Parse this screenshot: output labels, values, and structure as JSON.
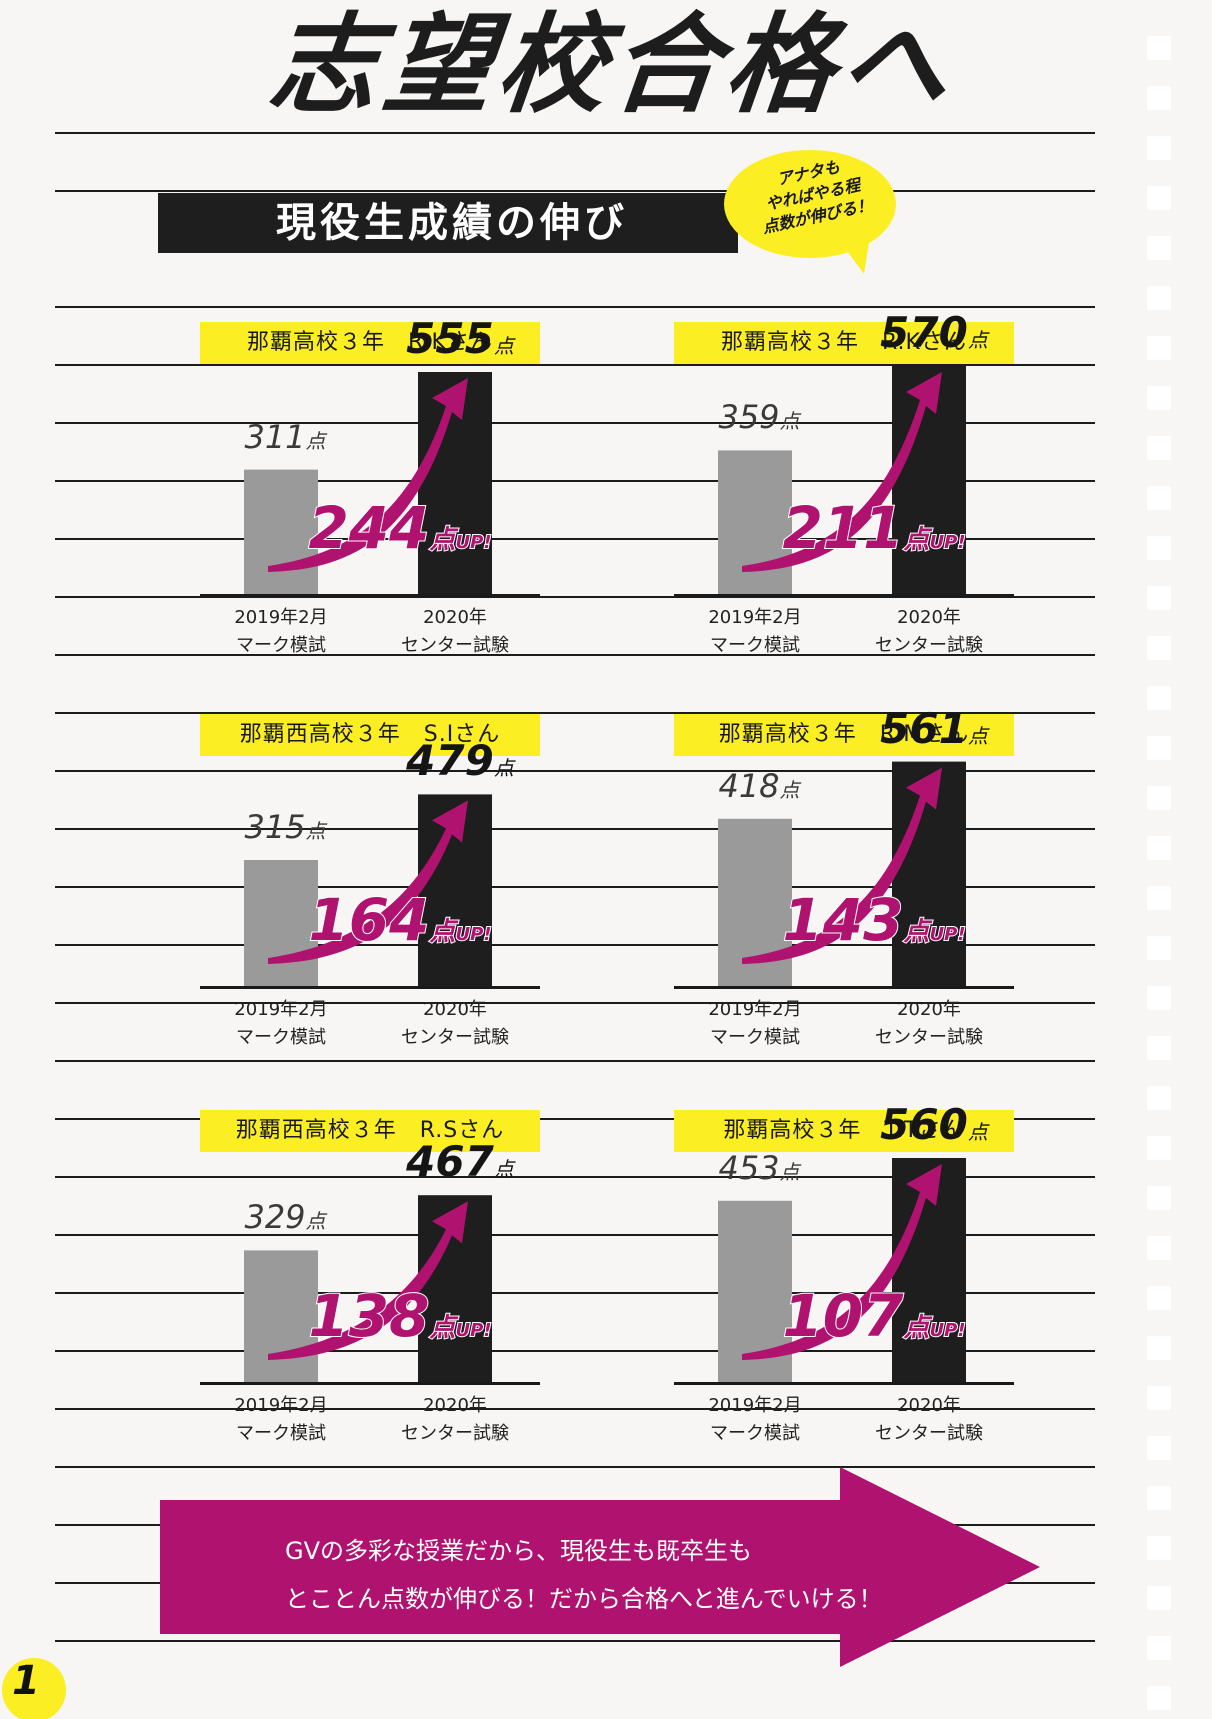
{
  "title": "志望校合格へ",
  "section_title": "現役生成績の伸び",
  "callout": [
    "アナタも",
    "やればやる程",
    "点数が伸びる！"
  ],
  "point_unit": "点",
  "up_suffix": "UP!",
  "periods": {
    "before": [
      "2019年2月",
      "マーク模試"
    ],
    "after": [
      "2020年",
      "センター試験"
    ]
  },
  "colors": {
    "accent": "#b0126f",
    "label_bg": "#fbee23",
    "before_bar": "#9a9a9a",
    "after_bar": "#1e1e1e"
  },
  "chart_data": [
    {
      "type": "bar",
      "label": "那覇高校３年　R.Kさん",
      "categories": [
        "2019年2月 マーク模試",
        "2020年 センター試験"
      ],
      "values": [
        311,
        555
      ],
      "gain": 244,
      "ylim": [
        0,
        600
      ]
    },
    {
      "type": "bar",
      "label": "那覇高校３年　R.Kさん",
      "categories": [
        "2019年2月 マーク模試",
        "2020年 センター試験"
      ],
      "values": [
        359,
        570
      ],
      "gain": 211,
      "ylim": [
        0,
        600
      ]
    },
    {
      "type": "bar",
      "label": "那覇西高校３年　S.Iさん",
      "categories": [
        "2019年2月 マーク模試",
        "2020年 センター試験"
      ],
      "values": [
        315,
        479
      ],
      "gain": 164,
      "ylim": [
        0,
        600
      ]
    },
    {
      "type": "bar",
      "label": "那覇高校３年　R.Mさん",
      "categories": [
        "2019年2月 マーク模試",
        "2020年 センター試験"
      ],
      "values": [
        418,
        561
      ],
      "gain": 143,
      "ylim": [
        0,
        600
      ]
    },
    {
      "type": "bar",
      "label": "那覇西高校３年　R.Sさん",
      "categories": [
        "2019年2月 マーク模試",
        "2020年 センター試験"
      ],
      "values": [
        329,
        467
      ],
      "gain": 138,
      "ylim": [
        0,
        600
      ]
    },
    {
      "type": "bar",
      "label": "那覇高校３年　T.Tさん",
      "categories": [
        "2019年2月 マーク模試",
        "2020年 センター試験"
      ],
      "values": [
        453,
        560
      ],
      "gain": 107,
      "ylim": [
        0,
        600
      ]
    }
  ],
  "banner_lines": [
    "GVの多彩な授業だから、現役生も既卒生も",
    "とことん点数が伸びる！だから合格へと進んでいける！"
  ],
  "page_number": "1"
}
